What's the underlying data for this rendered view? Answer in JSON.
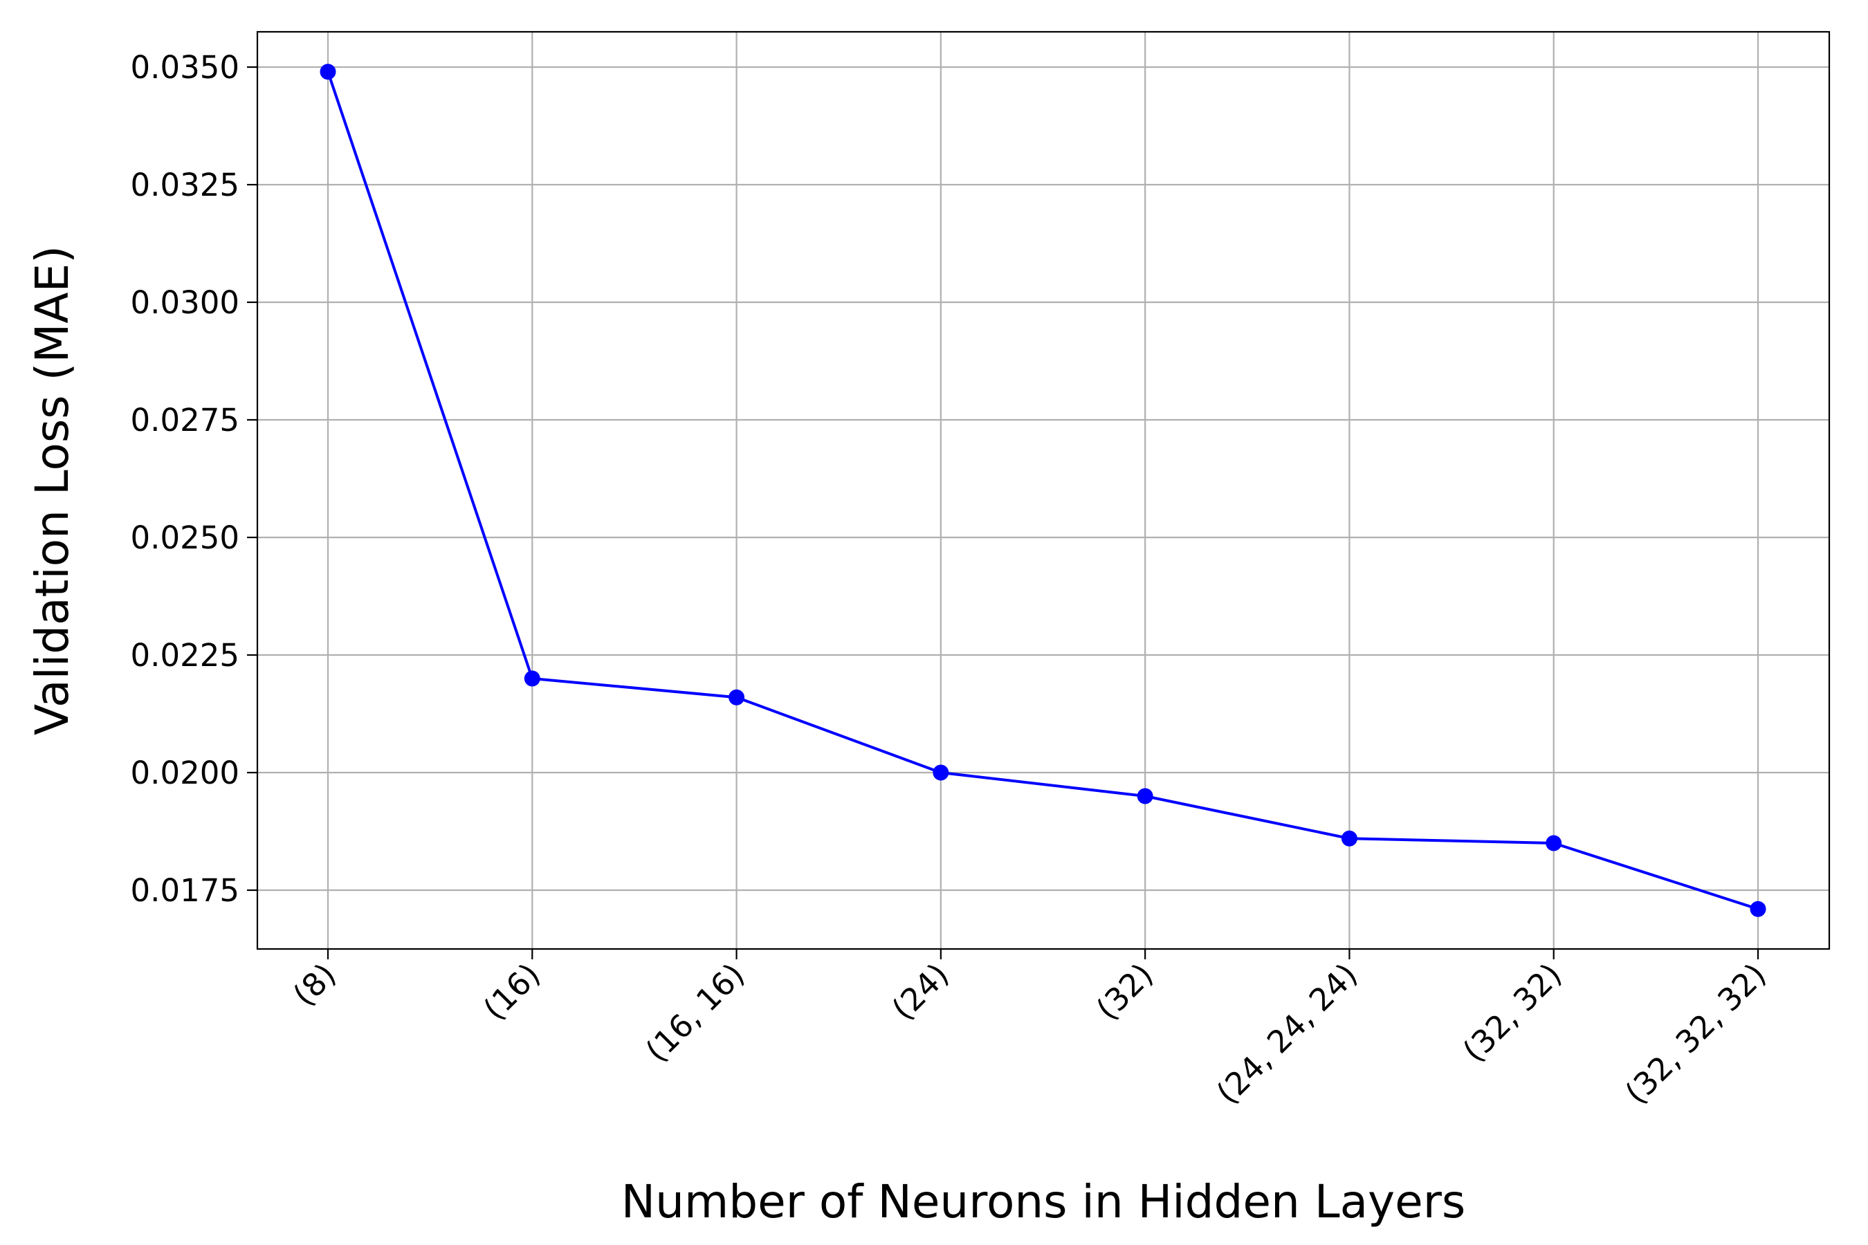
{
  "chart_data": {
    "type": "line",
    "xlabel": "Number of Neurons in Hidden Layers",
    "ylabel": "Validation Loss (MAE)",
    "categories": [
      "(8)",
      "(16)",
      "(16, 16)",
      "(24)",
      "(32)",
      "(24, 24, 24)",
      "(32, 32)",
      "(32, 32, 32)"
    ],
    "series": [
      {
        "values": [
          0.0349,
          0.022,
          0.0216,
          0.02,
          0.0195,
          0.0186,
          0.0185,
          0.0171
        ],
        "color": "#0000ff",
        "marker": "circle"
      }
    ],
    "ylim": [
      0.01625,
      0.03575
    ],
    "yticks": [
      0.0175,
      0.02,
      0.0225,
      0.025,
      0.0275,
      0.03,
      0.0325,
      0.035
    ],
    "ytick_labels": [
      "0.0175",
      "0.0200",
      "0.0225",
      "0.0250",
      "0.0275",
      "0.0300",
      "0.0325",
      "0.0350"
    ],
    "grid": true,
    "legend": "none"
  }
}
